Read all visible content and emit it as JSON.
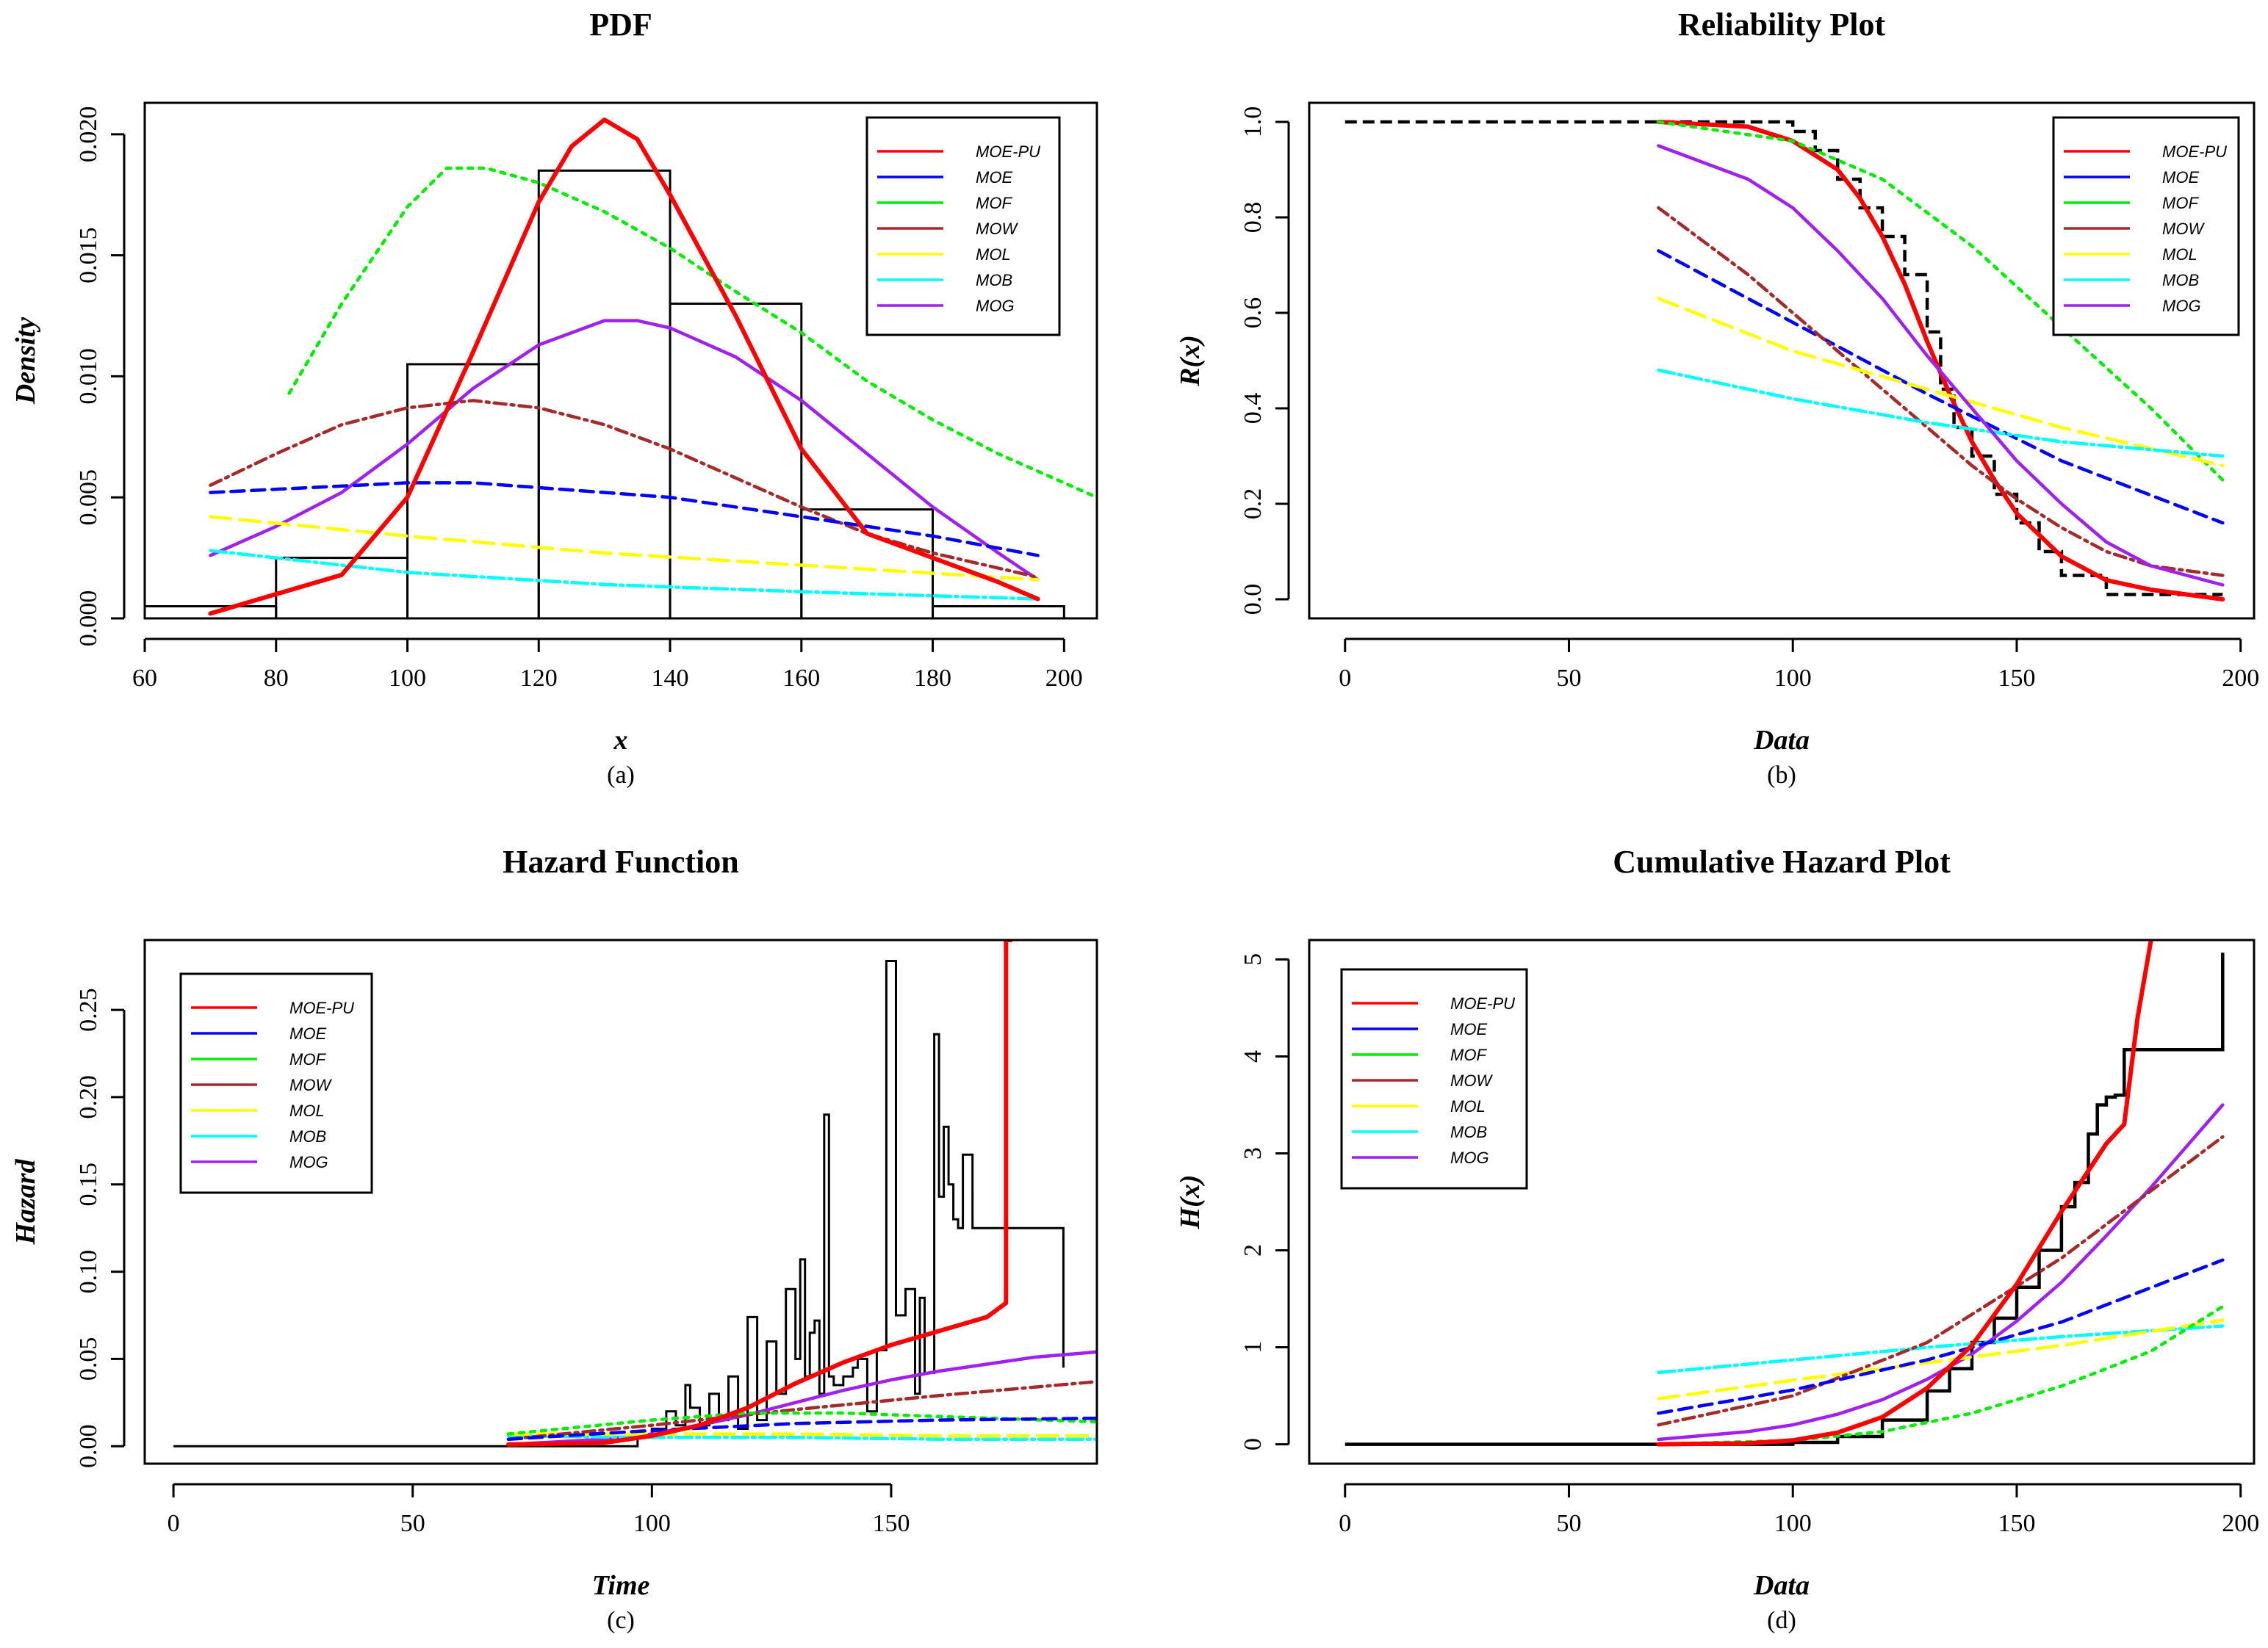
{
  "colors": {
    "MOE-PU": "#ff0000",
    "MOE": "#0000ff",
    "MOF": "#00ee00",
    "MOW": "#a52a2a",
    "MOL": "#ffff00",
    "MOB": "#00ffff",
    "MOG": "#a020f0",
    "empirical": "#000000"
  },
  "chart_data": [
    {
      "type": "line",
      "id": "a",
      "title": "PDF",
      "xlabel": "x",
      "ylabel": "Density",
      "caption": "(a)",
      "xlim": [
        60,
        205
      ],
      "ylim": [
        0,
        0.0213
      ],
      "xticks": [
        60,
        80,
        100,
        120,
        140,
        160,
        180,
        200
      ],
      "yticks": [
        0.0,
        0.005,
        0.01,
        0.015,
        0.02
      ],
      "ytick_labels": [
        "0.000",
        "0.005",
        "0.010",
        "0.015",
        "0.020"
      ],
      "legend": [
        "MOE-PU",
        "MOE",
        "MOF",
        "MOW",
        "MOL",
        "MOB",
        "MOG"
      ],
      "histogram": {
        "breaks": [
          60,
          80,
          100,
          120,
          140,
          160,
          180,
          200
        ],
        "density": [
          0.0005,
          0.0025,
          0.0105,
          0.0185,
          0.013,
          0.0045,
          0.0005
        ]
      },
      "series": [
        {
          "name": "MOE-PU",
          "x": [
            70,
            80,
            90,
            100,
            110,
            120,
            125,
            130,
            135,
            140,
            150,
            160,
            170,
            180,
            190,
            196
          ],
          "y": [
            0.0002,
            0.001,
            0.0018,
            0.005,
            0.011,
            0.0172,
            0.0195,
            0.0206,
            0.0198,
            0.0175,
            0.0125,
            0.007,
            0.0035,
            0.0025,
            0.0015,
            0.0008
          ]
        },
        {
          "name": "MOE",
          "x": [
            70,
            85,
            100,
            110,
            120,
            140,
            160,
            180,
            196
          ],
          "y": [
            0.0052,
            0.0054,
            0.0056,
            0.0056,
            0.0054,
            0.005,
            0.0042,
            0.0034,
            0.0026
          ]
        },
        {
          "name": "MOF",
          "x": [
            82,
            90,
            100,
            106,
            112,
            120,
            130,
            140,
            150,
            160,
            170,
            180,
            190,
            205
          ],
          "y": [
            0.0093,
            0.013,
            0.017,
            0.0186,
            0.0186,
            0.018,
            0.0168,
            0.0153,
            0.0135,
            0.0118,
            0.0098,
            0.0082,
            0.0068,
            0.005
          ]
        },
        {
          "name": "MOW",
          "x": [
            70,
            80,
            90,
            100,
            110,
            120,
            130,
            140,
            150,
            160,
            170,
            180,
            196
          ],
          "y": [
            0.0055,
            0.0068,
            0.008,
            0.0087,
            0.009,
            0.0087,
            0.008,
            0.007,
            0.0058,
            0.0046,
            0.0035,
            0.0027,
            0.0017
          ]
        },
        {
          "name": "MOL",
          "x": [
            70,
            100,
            130,
            160,
            196
          ],
          "y": [
            0.0042,
            0.0034,
            0.0027,
            0.0022,
            0.0016
          ]
        },
        {
          "name": "MOB",
          "x": [
            70,
            100,
            130,
            160,
            196
          ],
          "y": [
            0.0028,
            0.0019,
            0.0014,
            0.0011,
            0.0008
          ]
        },
        {
          "name": "MOG",
          "x": [
            70,
            80,
            90,
            100,
            110,
            120,
            130,
            135,
            140,
            150,
            160,
            170,
            180,
            190,
            196
          ],
          "y": [
            0.0026,
            0.0038,
            0.0052,
            0.0072,
            0.0095,
            0.0113,
            0.0123,
            0.0123,
            0.012,
            0.0108,
            0.009,
            0.0068,
            0.0046,
            0.0027,
            0.0016
          ]
        }
      ]
    },
    {
      "type": "line",
      "id": "b",
      "title": "Reliability Plot",
      "xlabel": "Data",
      "ylabel": "R(x)",
      "caption": "(b)",
      "xlim": [
        -8,
        203
      ],
      "ylim": [
        -0.04,
        1.04
      ],
      "xticks": [
        0,
        50,
        100,
        150,
        200
      ],
      "yticks": [
        0.0,
        0.2,
        0.4,
        0.6,
        0.8,
        1.0
      ],
      "ytick_labels": [
        "0.0",
        "0.2",
        "0.4",
        "0.6",
        "0.8",
        "1.0"
      ],
      "legend": [
        "MOE-PU",
        "MOE",
        "MOF",
        "MOW",
        "MOL",
        "MOB",
        "MOG"
      ],
      "empirical": {
        "x": [
          0,
          70,
          100,
          105,
          110,
          115,
          120,
          125,
          130,
          133,
          136,
          140,
          145,
          150,
          155,
          160,
          170,
          196
        ],
        "y": [
          1.0,
          1.0,
          0.98,
          0.94,
          0.88,
          0.82,
          0.76,
          0.68,
          0.56,
          0.44,
          0.36,
          0.3,
          0.22,
          0.16,
          0.1,
          0.05,
          0.01,
          0.01
        ]
      },
      "series": [
        {
          "name": "MOE-PU",
          "x": [
            70,
            90,
            100,
            110,
            115,
            120,
            125,
            130,
            135,
            140,
            145,
            150,
            160,
            170,
            180,
            196
          ],
          "y": [
            1.0,
            0.99,
            0.96,
            0.9,
            0.84,
            0.76,
            0.66,
            0.54,
            0.43,
            0.33,
            0.25,
            0.18,
            0.09,
            0.04,
            0.02,
            0.0
          ]
        },
        {
          "name": "MOE",
          "x": [
            70,
            100,
            130,
            160,
            196
          ],
          "y": [
            0.73,
            0.58,
            0.43,
            0.29,
            0.16
          ]
        },
        {
          "name": "MOF",
          "x": [
            70,
            100,
            120,
            140,
            160,
            180,
            196
          ],
          "y": [
            1.0,
            0.96,
            0.88,
            0.74,
            0.57,
            0.4,
            0.25
          ]
        },
        {
          "name": "MOW",
          "x": [
            70,
            90,
            100,
            110,
            120,
            130,
            140,
            150,
            160,
            170,
            180,
            196
          ],
          "y": [
            0.82,
            0.68,
            0.6,
            0.52,
            0.44,
            0.36,
            0.28,
            0.21,
            0.15,
            0.1,
            0.07,
            0.05
          ]
        },
        {
          "name": "MOL",
          "x": [
            70,
            100,
            130,
            160,
            196
          ],
          "y": [
            0.63,
            0.52,
            0.44,
            0.36,
            0.28
          ]
        },
        {
          "name": "MOB",
          "x": [
            70,
            100,
            130,
            160,
            196
          ],
          "y": [
            0.48,
            0.42,
            0.37,
            0.33,
            0.3
          ]
        },
        {
          "name": "MOG",
          "x": [
            70,
            90,
            100,
            110,
            120,
            130,
            140,
            150,
            160,
            170,
            180,
            196
          ],
          "y": [
            0.95,
            0.88,
            0.82,
            0.73,
            0.63,
            0.51,
            0.4,
            0.29,
            0.2,
            0.12,
            0.07,
            0.03
          ]
        }
      ]
    },
    {
      "type": "line",
      "id": "c",
      "title": "Hazard Function",
      "xlabel": "Time",
      "ylabel": "Hazard",
      "caption": "(c)",
      "xlim": [
        -6,
        193
      ],
      "ylim": [
        -0.01,
        0.29
      ],
      "xticks": [
        0,
        50,
        100,
        150
      ],
      "yticks": [
        0.0,
        0.05,
        0.1,
        0.15,
        0.2,
        0.25
      ],
      "ytick_labels": [
        "0.00",
        "0.05",
        "0.10",
        "0.15",
        "0.20",
        "0.25"
      ],
      "legend": [
        "MOE-PU",
        "MOE",
        "MOF",
        "MOW",
        "MOL",
        "MOB",
        "MOG"
      ],
      "empirical": {
        "x": [
          0,
          95,
          97,
          100,
          103,
          105,
          107,
          108,
          110,
          112,
          114,
          116,
          118,
          120,
          122,
          124,
          126,
          128,
          130,
          131,
          132,
          133,
          134,
          135,
          136,
          137,
          138,
          140,
          142,
          143,
          145,
          147,
          149,
          151,
          153,
          155,
          156,
          157,
          158,
          159,
          160,
          161,
          162,
          163,
          164,
          165,
          166,
          167,
          168,
          169,
          171,
          174,
          186,
          186
        ],
        "y": [
          0.0,
          0.0,
          0.005,
          0.01,
          0.02,
          0.012,
          0.035,
          0.022,
          0.012,
          0.03,
          0.015,
          0.04,
          0.01,
          0.074,
          0.015,
          0.06,
          0.03,
          0.09,
          0.05,
          0.107,
          0.04,
          0.065,
          0.072,
          0.03,
          0.19,
          0.04,
          0.035,
          0.04,
          0.045,
          0.05,
          0.02,
          0.055,
          0.278,
          0.075,
          0.09,
          0.03,
          0.085,
          0.042,
          0.042,
          0.236,
          0.143,
          0.183,
          0.15,
          0.13,
          0.125,
          0.167,
          0.167,
          0.125,
          0.125,
          0.125,
          0.125,
          0.125,
          0.125,
          0.045
        ]
      },
      "series": [
        {
          "name": "MOE-PU",
          "x": [
            70,
            90,
            100,
            110,
            120,
            130,
            140,
            150,
            160,
            170,
            174,
            174,
            175
          ],
          "y": [
            0.001,
            0.002,
            0.006,
            0.012,
            0.022,
            0.036,
            0.048,
            0.058,
            0.066,
            0.074,
            0.082,
            0.29,
            0.29
          ]
        },
        {
          "name": "MOE",
          "x": [
            70,
            100,
            130,
            160,
            193
          ],
          "y": [
            0.004,
            0.009,
            0.013,
            0.015,
            0.016
          ]
        },
        {
          "name": "MOF",
          "x": [
            70,
            100,
            120,
            140,
            160,
            193
          ],
          "y": [
            0.007,
            0.015,
            0.019,
            0.019,
            0.017,
            0.014
          ]
        },
        {
          "name": "MOW",
          "x": [
            70,
            100,
            130,
            160,
            193
          ],
          "y": [
            0.004,
            0.012,
            0.021,
            0.029,
            0.037
          ]
        },
        {
          "name": "MOL",
          "x": [
            70,
            100,
            130,
            160,
            193
          ],
          "y": [
            0.007,
            0.007,
            0.007,
            0.006,
            0.006
          ]
        },
        {
          "name": "MOB",
          "x": [
            70,
            100,
            130,
            160,
            193
          ],
          "y": [
            0.006,
            0.005,
            0.005,
            0.004,
            0.004
          ]
        },
        {
          "name": "MOG",
          "x": [
            70,
            90,
            100,
            110,
            120,
            130,
            140,
            150,
            160,
            170,
            180,
            193
          ],
          "y": [
            0.001,
            0.004,
            0.007,
            0.012,
            0.018,
            0.025,
            0.032,
            0.038,
            0.043,
            0.047,
            0.051,
            0.054
          ]
        }
      ]
    },
    {
      "type": "line",
      "id": "d",
      "title": "Cumulative Hazard Plot",
      "xlabel": "Data",
      "ylabel": "H(x)",
      "caption": "(d)",
      "xlim": [
        -8,
        203
      ],
      "ylim": [
        -0.2,
        5.2
      ],
      "xticks": [
        0,
        50,
        100,
        150,
        200
      ],
      "yticks": [
        0,
        1,
        2,
        3,
        4,
        5
      ],
      "ytick_labels": [
        "0",
        "1",
        "2",
        "3",
        "4",
        "5"
      ],
      "legend": [
        "MOE-PU",
        "MOE",
        "MOF",
        "MOW",
        "MOL",
        "MOB",
        "MOG"
      ],
      "empirical": {
        "x": [
          0,
          95,
          100,
          110,
          120,
          130,
          135,
          140,
          145,
          150,
          155,
          160,
          163,
          166,
          168,
          170,
          172,
          174,
          174,
          196,
          196
        ],
        "y": [
          0.0,
          0.0,
          0.02,
          0.08,
          0.25,
          0.55,
          0.78,
          1.05,
          1.3,
          1.62,
          2.0,
          2.45,
          2.7,
          3.2,
          3.5,
          3.58,
          3.6,
          4.07,
          4.07,
          4.07,
          5.07
        ]
      },
      "series": [
        {
          "name": "MOE-PU",
          "x": [
            70,
            90,
            100,
            110,
            120,
            130,
            140,
            150,
            160,
            170,
            174,
            177,
            180
          ],
          "y": [
            0.0,
            0.01,
            0.04,
            0.12,
            0.28,
            0.58,
            1.02,
            1.65,
            2.4,
            3.1,
            3.3,
            4.4,
            5.2
          ]
        },
        {
          "name": "MOE",
          "x": [
            70,
            100,
            130,
            160,
            196
          ],
          "y": [
            0.32,
            0.56,
            0.87,
            1.26,
            1.9
          ]
        },
        {
          "name": "MOF",
          "x": [
            70,
            100,
            120,
            140,
            160,
            180,
            196
          ],
          "y": [
            0.0,
            0.04,
            0.13,
            0.32,
            0.6,
            0.96,
            1.42
          ]
        },
        {
          "name": "MOW",
          "x": [
            70,
            100,
            130,
            160,
            196
          ],
          "y": [
            0.2,
            0.5,
            1.05,
            1.92,
            3.17
          ]
        },
        {
          "name": "MOL",
          "x": [
            70,
            100,
            130,
            160,
            196
          ],
          "y": [
            0.47,
            0.66,
            0.84,
            1.02,
            1.28
          ]
        },
        {
          "name": "MOB",
          "x": [
            70,
            100,
            130,
            160,
            196
          ],
          "y": [
            0.74,
            0.87,
            1.0,
            1.11,
            1.22
          ]
        },
        {
          "name": "MOG",
          "x": [
            70,
            90,
            100,
            110,
            120,
            130,
            140,
            150,
            160,
            170,
            180,
            196
          ],
          "y": [
            0.05,
            0.13,
            0.2,
            0.31,
            0.46,
            0.67,
            0.93,
            1.27,
            1.67,
            2.15,
            2.65,
            3.5
          ]
        }
      ]
    }
  ]
}
